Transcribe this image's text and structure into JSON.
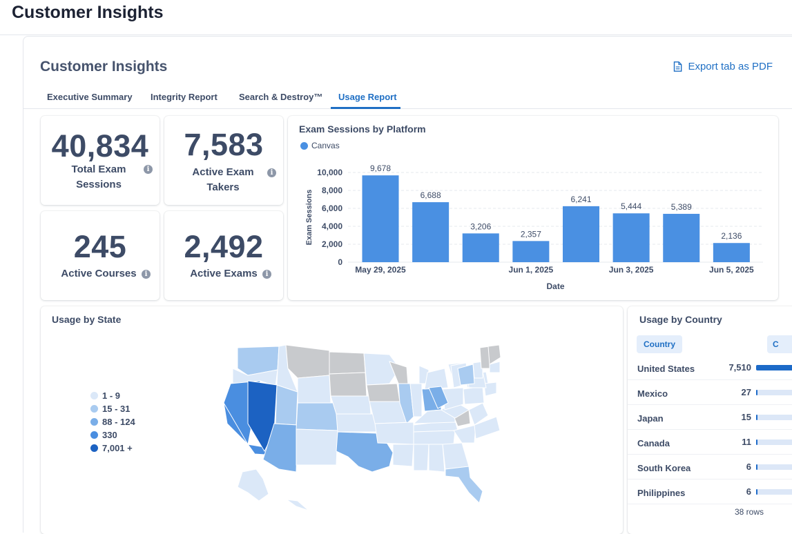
{
  "app": {
    "title": "Customer Insights"
  },
  "panel": {
    "title": "Customer Insights",
    "export_label": "Export tab as PDF"
  },
  "tabs": [
    {
      "label": "Executive Summary",
      "active": false
    },
    {
      "label": "Integrity Report",
      "active": false
    },
    {
      "label": "Search & Destroy™",
      "active": false
    },
    {
      "label": "Usage Report",
      "active": true
    }
  ],
  "kpis": {
    "total_exam_sessions": {
      "value": "40,834",
      "label": "Total Exam Sessions"
    },
    "active_exam_takers": {
      "value": "7,583",
      "label": "Active Exam Takers"
    },
    "active_courses": {
      "value": "245",
      "label": "Active Courses"
    },
    "active_exams": {
      "value": "2,492",
      "label": "Active Exams"
    }
  },
  "chart_data": {
    "type": "bar",
    "title": "Exam Sessions by Platform",
    "xlabel": "Date",
    "ylabel": "Exam Sessions",
    "ylim": [
      0,
      10000
    ],
    "yticks": [
      "0",
      "2,000",
      "4,000",
      "6,000",
      "8,000",
      "10,000"
    ],
    "x_tick_labels": [
      "May 29, 2025",
      "Jun 1, 2025",
      "Jun 3, 2025",
      "Jun 5, 2025"
    ],
    "series": [
      {
        "name": "Canvas",
        "color": "#4a90e2",
        "values": [
          9678,
          6688,
          3206,
          2357,
          6241,
          5444,
          5389,
          2136
        ],
        "labels": [
          "9,678",
          "6,688",
          "3,206",
          "2,357",
          "6,241",
          "5,444",
          "5,389",
          "2,136"
        ]
      }
    ],
    "grid": true,
    "legend": "top-left"
  },
  "state_map": {
    "title": "Usage by State",
    "legend": [
      {
        "label": "1 - 9",
        "color": "#dbe8f8"
      },
      {
        "label": "15 - 31",
        "color": "#a9cbf0"
      },
      {
        "label": "88 - 124",
        "color": "#7aaee8"
      },
      {
        "label": "330",
        "color": "#4a8ee0"
      },
      {
        "label": "7,001 +",
        "color": "#1c62c2"
      }
    ]
  },
  "country_table": {
    "title": "Usage by Country",
    "column_header": "Country",
    "second_header": "C",
    "rows": [
      {
        "country": "United States",
        "value": "7,510",
        "fraction": 1.0
      },
      {
        "country": "Mexico",
        "value": "27",
        "fraction": 0.004
      },
      {
        "country": "Japan",
        "value": "15",
        "fraction": 0.002
      },
      {
        "country": "Canada",
        "value": "11",
        "fraction": 0.0015
      },
      {
        "country": "South Korea",
        "value": "6",
        "fraction": 0.0008
      },
      {
        "country": "Philippines",
        "value": "6",
        "fraction": 0.0008
      }
    ],
    "footer": "38 rows"
  }
}
